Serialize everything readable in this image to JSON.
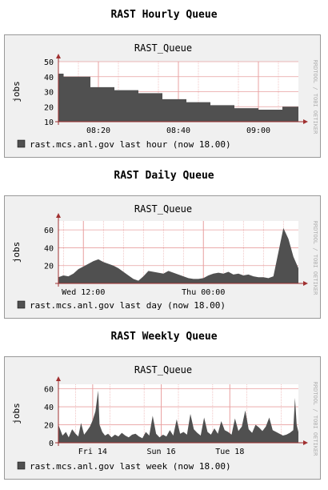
{
  "charts": [
    {
      "section_title": "RAST Hourly Queue",
      "plot_title": "RAST_Queue",
      "ylabel": "jobs",
      "watermark": "RRDTOOL / TOBI OETIKER",
      "legend": "rast.mcs.anl.gov last hour (now 18.00)",
      "colors": {
        "area": "#505050",
        "grid": "#e8a0a0",
        "axis": "#a03030",
        "plotbg": "#ffffff",
        "border": "#999999"
      }
    },
    {
      "section_title": "RAST Daily Queue",
      "plot_title": "RAST_Queue",
      "ylabel": "jobs",
      "watermark": "RRDTOOL / TOBI OETIKER",
      "legend": "rast.mcs.anl.gov last day (now 18.00)",
      "colors": {
        "area": "#505050",
        "grid": "#e8a0a0",
        "axis": "#a03030",
        "plotbg": "#ffffff",
        "border": "#999999"
      }
    },
    {
      "section_title": "RAST Weekly Queue",
      "plot_title": "RAST_Queue",
      "ylabel": "jobs",
      "watermark": "RRDTOOL / TOBI OETIKER",
      "legend": "rast.mcs.anl.gov last week (now 18.00)",
      "colors": {
        "area": "#505050",
        "grid": "#e8a0a0",
        "axis": "#a03030",
        "plotbg": "#ffffff",
        "border": "#999999"
      }
    }
  ],
  "chart_data": [
    {
      "type": "area",
      "title": "RAST_Queue",
      "ylabel": "jobs",
      "ylim": [
        10,
        50
      ],
      "yticks": [
        10,
        20,
        30,
        40,
        50
      ],
      "xlim_minutes": [
        0,
        60
      ],
      "xticks": [
        {
          "label": "08:20",
          "x": 10
        },
        {
          "label": "08:40",
          "x": 30
        },
        {
          "label": "09:00",
          "x": 50
        }
      ],
      "minor_x": [
        5,
        15,
        25,
        35,
        45,
        55
      ],
      "series": [
        {
          "x": [
            0,
            1.3,
            1.3,
            8,
            8,
            14,
            14,
            20,
            20,
            26,
            26,
            32,
            32,
            38,
            38,
            44,
            44,
            50,
            50,
            56,
            56,
            60
          ],
          "y": [
            42,
            42,
            40,
            40,
            33,
            33,
            31,
            31,
            29,
            29,
            25,
            25,
            23,
            23,
            21,
            21,
            19,
            19,
            18,
            18,
            20,
            20
          ]
        }
      ],
      "legend": [
        "rast.mcs.anl.gov last hour (now 18.00)"
      ]
    },
    {
      "type": "area",
      "title": "RAST_Queue",
      "ylabel": "jobs",
      "ylim": [
        0,
        70
      ],
      "yticks": [
        20,
        40,
        60
      ],
      "xlim_hours": [
        0,
        24
      ],
      "xticks": [
        {
          "label": "Wed 12:00",
          "x": 2.5
        },
        {
          "label": "Thu 00:00",
          "x": 14.5
        }
      ],
      "minor_x": [
        0.5,
        2.5,
        4.5,
        6.5,
        8.5,
        10.5,
        12.5,
        14.5,
        16.5,
        18.5,
        20.5,
        22.5
      ],
      "series": [
        {
          "x": [
            0,
            0.5,
            1,
            1.5,
            2,
            2.5,
            3,
            3.5,
            4,
            4.5,
            5,
            5.5,
            6,
            6.5,
            7,
            7.5,
            8,
            8.5,
            9,
            9.5,
            10,
            10.5,
            11,
            11.5,
            12,
            12.5,
            13,
            13.5,
            14,
            14.5,
            15,
            15.5,
            16,
            16.5,
            17,
            17.5,
            18,
            18.5,
            19,
            19.5,
            20,
            20.5,
            21,
            21.5,
            22,
            22.5,
            23,
            23.5,
            24
          ],
          "y": [
            7,
            9,
            8,
            11,
            16,
            19,
            22,
            25,
            27,
            24,
            22,
            20,
            17,
            13,
            9,
            5,
            3,
            8,
            14,
            13,
            12,
            11,
            14,
            12,
            10,
            8,
            6,
            5,
            5,
            6,
            9,
            11,
            12,
            11,
            13,
            10,
            11,
            9,
            10,
            8,
            7,
            7,
            6,
            8,
            35,
            62,
            50,
            30,
            17
          ]
        }
      ],
      "legend": [
        "rast.mcs.anl.gov last day (now 18.00)"
      ]
    },
    {
      "type": "area",
      "title": "RAST_Queue",
      "ylabel": "jobs",
      "ylim": [
        0,
        65
      ],
      "yticks": [
        0,
        20,
        40,
        60
      ],
      "xlim_days": [
        0,
        7
      ],
      "xticks": [
        {
          "label": "Fri 14",
          "x": 1
        },
        {
          "label": "Sun 16",
          "x": 3
        },
        {
          "label": "Tue 18",
          "x": 5
        }
      ],
      "minor_x": [
        0.5,
        1.5,
        2.5,
        3.5,
        4.5,
        5.5,
        6.5
      ],
      "series": [
        {
          "x": [
            0,
            0.12,
            0.22,
            0.3,
            0.4,
            0.5,
            0.58,
            0.66,
            0.75,
            0.83,
            0.92,
            1.0,
            1.08,
            1.16,
            1.2,
            1.28,
            1.36,
            1.45,
            1.55,
            1.65,
            1.75,
            1.85,
            1.95,
            2.05,
            2.15,
            2.25,
            2.35,
            2.45,
            2.55,
            2.65,
            2.75,
            2.85,
            2.95,
            3.05,
            3.15,
            3.25,
            3.35,
            3.45,
            3.55,
            3.65,
            3.75,
            3.85,
            3.95,
            4.05,
            4.15,
            4.25,
            4.35,
            4.45,
            4.55,
            4.65,
            4.75,
            4.85,
            4.95,
            5.05,
            5.15,
            5.25,
            5.35,
            5.45,
            5.55,
            5.65,
            5.75,
            5.85,
            5.95,
            6.05,
            6.15,
            6.25,
            6.35,
            6.45,
            6.55,
            6.65,
            6.75,
            6.85,
            6.9,
            6.95,
            7
          ],
          "y": [
            20,
            8,
            12,
            6,
            15,
            10,
            7,
            22,
            9,
            13,
            18,
            25,
            35,
            58,
            20,
            12,
            8,
            10,
            6,
            9,
            7,
            11,
            8,
            6,
            9,
            10,
            7,
            5,
            12,
            8,
            30,
            10,
            6,
            9,
            7,
            14,
            8,
            26,
            10,
            12,
            9,
            32,
            15,
            11,
            8,
            28,
            12,
            9,
            16,
            10,
            24,
            14,
            12,
            9,
            27,
            13,
            18,
            36,
            15,
            11,
            20,
            17,
            13,
            18,
            28,
            14,
            12,
            10,
            8,
            9,
            11,
            14,
            50,
            20,
            12
          ]
        }
      ],
      "legend": [
        "rast.mcs.anl.gov last week (now 18.00)"
      ]
    }
  ]
}
